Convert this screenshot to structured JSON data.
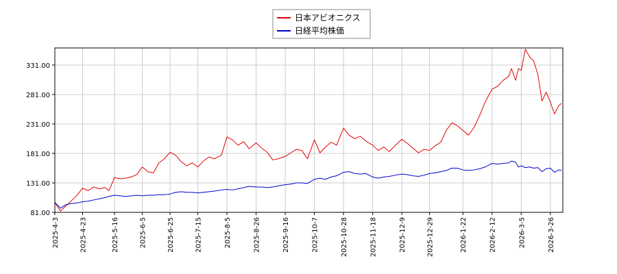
{
  "chart_data": {
    "type": "line",
    "title": "",
    "xlabel": "",
    "ylabel": "",
    "ylim": [
      81.0,
      360.0
    ],
    "y_ticks": [
      "81.00",
      "131.00",
      "181.00",
      "231.00",
      "281.00",
      "331.00"
    ],
    "x_ticks": [
      "2025-4-3",
      "2025-4-23",
      "2025-5-16",
      "2025-6-5",
      "2025-6-25",
      "2025-7-15",
      "2025-8-5",
      "2025-8-26",
      "2025-9-16",
      "2025-10-7",
      "2025-10-28",
      "2025-11-18",
      "2025-12-9",
      "2025-12-29",
      "2026-1-22",
      "2026-2-12",
      "2026-3-5",
      "2026-3-26"
    ],
    "grid": true,
    "legend_position": "top-center",
    "series": [
      {
        "name": "日本アビオニクス",
        "color": "#e00000",
        "points": [
          [
            "2025-4-3",
            98
          ],
          [
            "2025-4-7",
            83
          ],
          [
            "2025-4-11",
            92
          ],
          [
            "2025-4-15",
            101
          ],
          [
            "2025-4-19",
            110
          ],
          [
            "2025-4-23",
            122
          ],
          [
            "2025-4-27",
            118
          ],
          [
            "2025-5-1",
            124
          ],
          [
            "2025-5-5",
            121
          ],
          [
            "2025-5-9",
            123
          ],
          [
            "2025-5-12",
            118
          ],
          [
            "2025-5-16",
            140
          ],
          [
            "2025-5-20",
            138
          ],
          [
            "2025-5-24",
            139
          ],
          [
            "2025-5-28",
            141
          ],
          [
            "2025-6-1",
            145
          ],
          [
            "2025-6-5",
            158
          ],
          [
            "2025-6-9",
            150
          ],
          [
            "2025-6-13",
            148
          ],
          [
            "2025-6-17",
            165
          ],
          [
            "2025-6-21",
            172
          ],
          [
            "2025-6-25",
            183
          ],
          [
            "2025-6-29",
            178
          ],
          [
            "2025-7-3",
            167
          ],
          [
            "2025-7-7",
            160
          ],
          [
            "2025-7-11",
            165
          ],
          [
            "2025-7-15",
            158
          ],
          [
            "2025-7-19",
            168
          ],
          [
            "2025-7-23",
            175
          ],
          [
            "2025-7-27",
            172
          ],
          [
            "2025-8-1",
            178
          ],
          [
            "2025-8-5",
            209
          ],
          [
            "2025-8-9",
            204
          ],
          [
            "2025-8-13",
            195
          ],
          [
            "2025-8-17",
            201
          ],
          [
            "2025-8-21",
            189
          ],
          [
            "2025-8-26",
            199
          ],
          [
            "2025-8-30",
            190
          ],
          [
            "2025-9-3",
            183
          ],
          [
            "2025-9-7",
            170
          ],
          [
            "2025-9-11",
            172
          ],
          [
            "2025-9-16",
            176
          ],
          [
            "2025-9-20",
            182
          ],
          [
            "2025-9-24",
            188
          ],
          [
            "2025-9-28",
            186
          ],
          [
            "2025-10-2",
            172
          ],
          [
            "2025-10-7",
            204
          ],
          [
            "2025-10-11",
            182
          ],
          [
            "2025-10-15",
            192
          ],
          [
            "2025-10-19",
            200
          ],
          [
            "2025-10-23",
            195
          ],
          [
            "2025-10-28",
            224
          ],
          [
            "2025-11-1",
            212
          ],
          [
            "2025-11-5",
            206
          ],
          [
            "2025-11-9",
            210
          ],
          [
            "2025-11-13",
            202
          ],
          [
            "2025-11-18",
            195
          ],
          [
            "2025-11-22",
            186
          ],
          [
            "2025-11-26",
            192
          ],
          [
            "2025-11-30",
            184
          ],
          [
            "2025-12-4",
            194
          ],
          [
            "2025-12-9",
            205
          ],
          [
            "2025-12-13",
            198
          ],
          [
            "2025-12-17",
            190
          ],
          [
            "2025-12-21",
            182
          ],
          [
            "2025-12-25",
            188
          ],
          [
            "2025-12-29",
            186
          ],
          [
            "2026-1-2",
            194
          ],
          [
            "2026-1-6",
            200
          ],
          [
            "2026-1-10",
            220
          ],
          [
            "2026-1-14",
            233
          ],
          [
            "2026-1-18",
            228
          ],
          [
            "2026-1-22",
            220
          ],
          [
            "2026-1-26",
            212
          ],
          [
            "2026-1-30",
            225
          ],
          [
            "2026-2-3",
            245
          ],
          [
            "2026-2-7",
            268
          ],
          [
            "2026-2-12",
            290
          ],
          [
            "2026-2-16",
            295
          ],
          [
            "2026-2-20",
            305
          ],
          [
            "2026-2-24",
            312
          ],
          [
            "2026-2-26",
            325
          ],
          [
            "2026-3-1",
            305
          ],
          [
            "2026-3-3",
            325
          ],
          [
            "2026-3-5",
            322
          ],
          [
            "2026-3-8",
            358
          ],
          [
            "2026-3-11",
            345
          ],
          [
            "2026-3-14",
            338
          ],
          [
            "2026-3-17",
            315
          ],
          [
            "2026-3-20",
            270
          ],
          [
            "2026-3-23",
            285
          ],
          [
            "2026-3-26",
            268
          ],
          [
            "2026-3-29",
            248
          ],
          [
            "2026-4-1",
            262
          ],
          [
            "2026-4-3",
            266
          ]
        ]
      },
      {
        "name": "日経平均株価",
        "color": "#0000cc",
        "points": [
          [
            "2025-4-3",
            98
          ],
          [
            "2025-4-7",
            88
          ],
          [
            "2025-4-11",
            94
          ],
          [
            "2025-4-15",
            96
          ],
          [
            "2025-4-19",
            97
          ],
          [
            "2025-4-23",
            99
          ],
          [
            "2025-4-27",
            100
          ],
          [
            "2025-5-1",
            102
          ],
          [
            "2025-5-5",
            104
          ],
          [
            "2025-5-9",
            106
          ],
          [
            "2025-5-12",
            108
          ],
          [
            "2025-5-16",
            110
          ],
          [
            "2025-5-20",
            109
          ],
          [
            "2025-5-24",
            108
          ],
          [
            "2025-5-28",
            109
          ],
          [
            "2025-6-1",
            110
          ],
          [
            "2025-6-5",
            109
          ],
          [
            "2025-6-9",
            110
          ],
          [
            "2025-6-13",
            110
          ],
          [
            "2025-6-17",
            111
          ],
          [
            "2025-6-21",
            111
          ],
          [
            "2025-6-25",
            112
          ],
          [
            "2025-6-29",
            115
          ],
          [
            "2025-7-3",
            116
          ],
          [
            "2025-7-7",
            115
          ],
          [
            "2025-7-11",
            115
          ],
          [
            "2025-7-15",
            114
          ],
          [
            "2025-7-19",
            115
          ],
          [
            "2025-7-23",
            116
          ],
          [
            "2025-7-27",
            117
          ],
          [
            "2025-8-1",
            119
          ],
          [
            "2025-8-5",
            120
          ],
          [
            "2025-8-9",
            119
          ],
          [
            "2025-8-13",
            121
          ],
          [
            "2025-8-17",
            123
          ],
          [
            "2025-8-21",
            125
          ],
          [
            "2025-8-26",
            124
          ],
          [
            "2025-8-30",
            124
          ],
          [
            "2025-9-3",
            123
          ],
          [
            "2025-9-7",
            124
          ],
          [
            "2025-9-11",
            126
          ],
          [
            "2025-9-16",
            128
          ],
          [
            "2025-9-20",
            129
          ],
          [
            "2025-9-24",
            131
          ],
          [
            "2025-9-28",
            131
          ],
          [
            "2025-10-2",
            130
          ],
          [
            "2025-10-7",
            137
          ],
          [
            "2025-10-11",
            139
          ],
          [
            "2025-10-15",
            137
          ],
          [
            "2025-10-19",
            141
          ],
          [
            "2025-10-23",
            143
          ],
          [
            "2025-10-28",
            149
          ],
          [
            "2025-11-1",
            150
          ],
          [
            "2025-11-5",
            147
          ],
          [
            "2025-11-9",
            146
          ],
          [
            "2025-11-13",
            147
          ],
          [
            "2025-11-18",
            141
          ],
          [
            "2025-11-22",
            139
          ],
          [
            "2025-11-26",
            141
          ],
          [
            "2025-11-30",
            142
          ],
          [
            "2025-12-4",
            144
          ],
          [
            "2025-12-9",
            146
          ],
          [
            "2025-12-13",
            145
          ],
          [
            "2025-12-17",
            143
          ],
          [
            "2025-12-21",
            142
          ],
          [
            "2025-12-25",
            144
          ],
          [
            "2025-12-29",
            147
          ],
          [
            "2026-1-2",
            148
          ],
          [
            "2026-1-6",
            150
          ],
          [
            "2026-1-10",
            152
          ],
          [
            "2026-1-14",
            156
          ],
          [
            "2026-1-18",
            156
          ],
          [
            "2026-1-22",
            153
          ],
          [
            "2026-1-26",
            152
          ],
          [
            "2026-1-30",
            153
          ],
          [
            "2026-2-3",
            155
          ],
          [
            "2026-2-7",
            158
          ],
          [
            "2026-2-12",
            164
          ],
          [
            "2026-2-16",
            163
          ],
          [
            "2026-2-20",
            164
          ],
          [
            "2026-2-24",
            165
          ],
          [
            "2026-2-26",
            168
          ],
          [
            "2026-3-1",
            166
          ],
          [
            "2026-3-3",
            158
          ],
          [
            "2026-3-5",
            160
          ],
          [
            "2026-3-8",
            157
          ],
          [
            "2026-3-11",
            158
          ],
          [
            "2026-3-14",
            156
          ],
          [
            "2026-3-17",
            157
          ],
          [
            "2026-3-20",
            150
          ],
          [
            "2026-3-23",
            155
          ],
          [
            "2026-3-26",
            156
          ],
          [
            "2026-3-29",
            149
          ],
          [
            "2026-4-1",
            153
          ],
          [
            "2026-4-3",
            152
          ]
        ]
      }
    ]
  }
}
